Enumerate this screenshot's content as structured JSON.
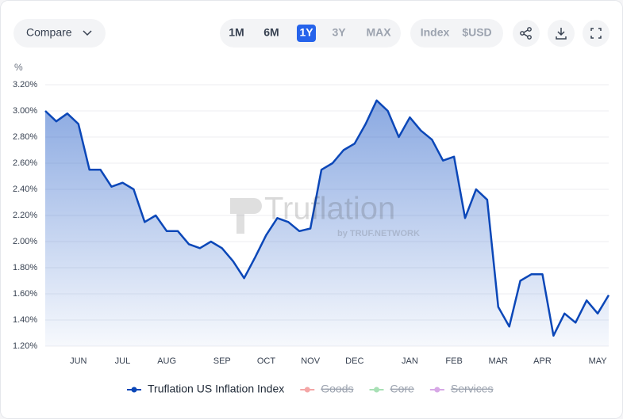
{
  "toolbar": {
    "compare": "Compare",
    "ranges": [
      "1M",
      "6M",
      "1Y",
      "3Y",
      "MAX"
    ],
    "active_range": 2,
    "disabled_ranges": [
      3,
      4
    ],
    "units": [
      "Index",
      "$USD"
    ]
  },
  "watermark": {
    "title": "Truflation",
    "subtitle": "by TRUF.NETWORK"
  },
  "chart_data": {
    "type": "line",
    "y_label": "%",
    "categories": [
      null,
      null,
      null,
      "JUN",
      null,
      null,
      null,
      "JUL",
      null,
      null,
      null,
      "AUG",
      null,
      null,
      null,
      null,
      "SEP",
      null,
      null,
      null,
      "OCT",
      null,
      null,
      null,
      "NOV",
      null,
      null,
      null,
      "DEC",
      null,
      null,
      null,
      null,
      "JAN",
      null,
      null,
      null,
      "FEB",
      null,
      null,
      null,
      "MAR",
      null,
      null,
      null,
      "APR",
      null,
      null,
      null,
      null,
      "MAY",
      null
    ],
    "series": [
      {
        "name": "Truflation US Inflation Index",
        "color": "#0b47b8",
        "values": [
          3.0,
          2.92,
          2.98,
          2.9,
          2.55,
          2.55,
          2.42,
          2.45,
          2.4,
          2.15,
          2.2,
          2.08,
          2.08,
          1.98,
          1.95,
          2.0,
          1.95,
          1.85,
          1.72,
          1.88,
          2.05,
          2.18,
          2.15,
          2.08,
          2.1,
          2.55,
          2.6,
          2.7,
          2.75,
          2.9,
          3.08,
          3.0,
          2.8,
          2.95,
          2.85,
          2.78,
          2.62,
          2.65,
          2.18,
          2.4,
          2.32,
          1.5,
          1.35,
          1.7,
          1.75,
          1.75,
          1.28,
          1.45,
          1.38,
          1.55,
          1.45,
          1.59
        ]
      }
    ],
    "disabled_series": [
      {
        "name": "Goods",
        "color": "#f4a6a6"
      },
      {
        "name": "Core",
        "color": "#a8e0b5"
      },
      {
        "name": "Services",
        "color": "#d7a8e6"
      }
    ],
    "ylim": [
      1.2,
      3.2
    ],
    "yticks": [
      {
        "value": 1.2,
        "label": "1.20%"
      },
      {
        "value": 1.4,
        "label": "1.40%"
      },
      {
        "value": 1.6,
        "label": "1.60%"
      },
      {
        "value": 1.8,
        "label": "1.80%"
      },
      {
        "value": 2.0,
        "label": "2.00%"
      },
      {
        "value": 2.2,
        "label": "2.20%"
      },
      {
        "value": 2.4,
        "label": "2.40%"
      },
      {
        "value": 2.6,
        "label": "2.60%"
      },
      {
        "value": 2.8,
        "label": "2.80%"
      },
      {
        "value": 3.0,
        "label": "3.00%"
      },
      {
        "value": 3.2,
        "label": "3.20%"
      }
    ],
    "grid": true
  }
}
